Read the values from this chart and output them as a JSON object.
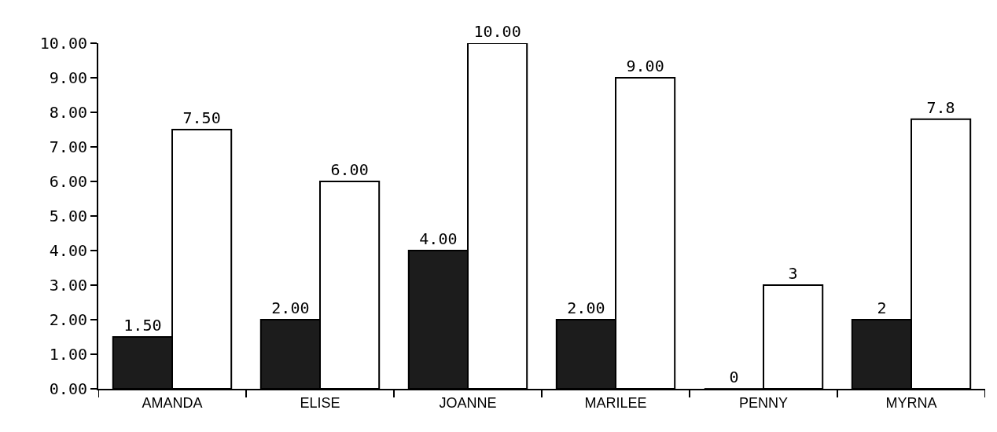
{
  "chart_data": {
    "type": "bar",
    "categories": [
      "AMANDA",
      "ELISE",
      "JOANNE",
      "MARILEE",
      "PENNY",
      "MYRNA"
    ],
    "series": [
      {
        "color": "#1c1c1c",
        "values": [
          1.5,
          2,
          4,
          2,
          0,
          2
        ],
        "value_labels": [
          "1.50",
          "2.00",
          "4.00",
          "2.00",
          "0",
          "2"
        ]
      },
      {
        "color": "#ffffff",
        "values": [
          7.5,
          6,
          10,
          9,
          3,
          7.8
        ],
        "value_labels": [
          "7.50",
          "6.00",
          "10.00",
          "9.00",
          "3",
          "7.8"
        ]
      }
    ],
    "ylim": [
      0,
      10
    ],
    "yticks": [
      {
        "value": 0,
        "label": "0.00"
      },
      {
        "value": 1,
        "label": "1.00"
      },
      {
        "value": 2,
        "label": "2.00"
      },
      {
        "value": 3,
        "label": "3.00"
      },
      {
        "value": 4,
        "label": "4.00"
      },
      {
        "value": 5,
        "label": "5.00"
      },
      {
        "value": 6,
        "label": "6.00"
      },
      {
        "value": 7,
        "label": "7.00"
      },
      {
        "value": 8,
        "label": "8.00"
      },
      {
        "value": 9,
        "label": "9.00"
      },
      {
        "value": 10,
        "label": "10.00"
      }
    ]
  }
}
